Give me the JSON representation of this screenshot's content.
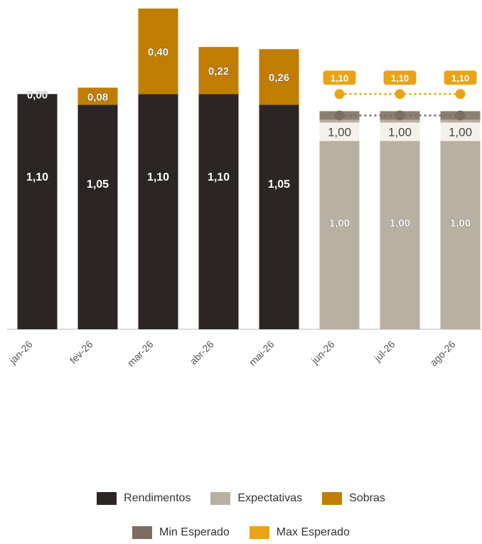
{
  "chart_data": {
    "type": "bar",
    "categories": [
      "jan-26",
      "fev-26",
      "mar-26",
      "abr-26",
      "mai-26",
      "jun-26",
      "jul-26",
      "ago-26"
    ],
    "series": [
      {
        "name": "Rendimentos",
        "values": [
          1.1,
          1.05,
          1.1,
          1.1,
          1.05,
          null,
          null,
          null
        ],
        "labels": [
          "1,10",
          "1,05",
          "1,10",
          "1,10",
          "1,05",
          "",
          "",
          ""
        ],
        "color": "#2b2523"
      },
      {
        "name": "Sobras",
        "values": [
          0.0,
          0.08,
          0.4,
          0.22,
          0.26,
          null,
          null,
          null
        ],
        "labels": [
          "0,00",
          "0,08",
          "0,40",
          "0,22",
          "0,26",
          "",
          "",
          ""
        ],
        "color": "#c07d00"
      },
      {
        "name": "Expectativas",
        "values": [
          null,
          null,
          null,
          null,
          null,
          1.0,
          1.0,
          1.0
        ],
        "labels": [
          "",
          "",
          "",
          "",
          "",
          "1,00",
          "1,00",
          "1,00"
        ],
        "color": "#b8b1a1"
      },
      {
        "name": "Min Esperado",
        "values": [
          null,
          null,
          null,
          null,
          null,
          1.0,
          1.0,
          1.0
        ],
        "labels": [
          "",
          "",
          "",
          "",
          "",
          "1,00",
          "1,00",
          "1,00"
        ],
        "color": "#7b6d64"
      },
      {
        "name": "Max Esperado",
        "values": [
          null,
          null,
          null,
          null,
          null,
          1.1,
          1.1,
          1.1
        ],
        "labels": [
          "",
          "",
          "",
          "",
          "",
          "1,10",
          "1,10",
          "1,10"
        ],
        "color": "#e8a317"
      }
    ],
    "ylim": [
      0,
      1.5
    ],
    "grid": false,
    "legend_position": "bottom"
  }
}
